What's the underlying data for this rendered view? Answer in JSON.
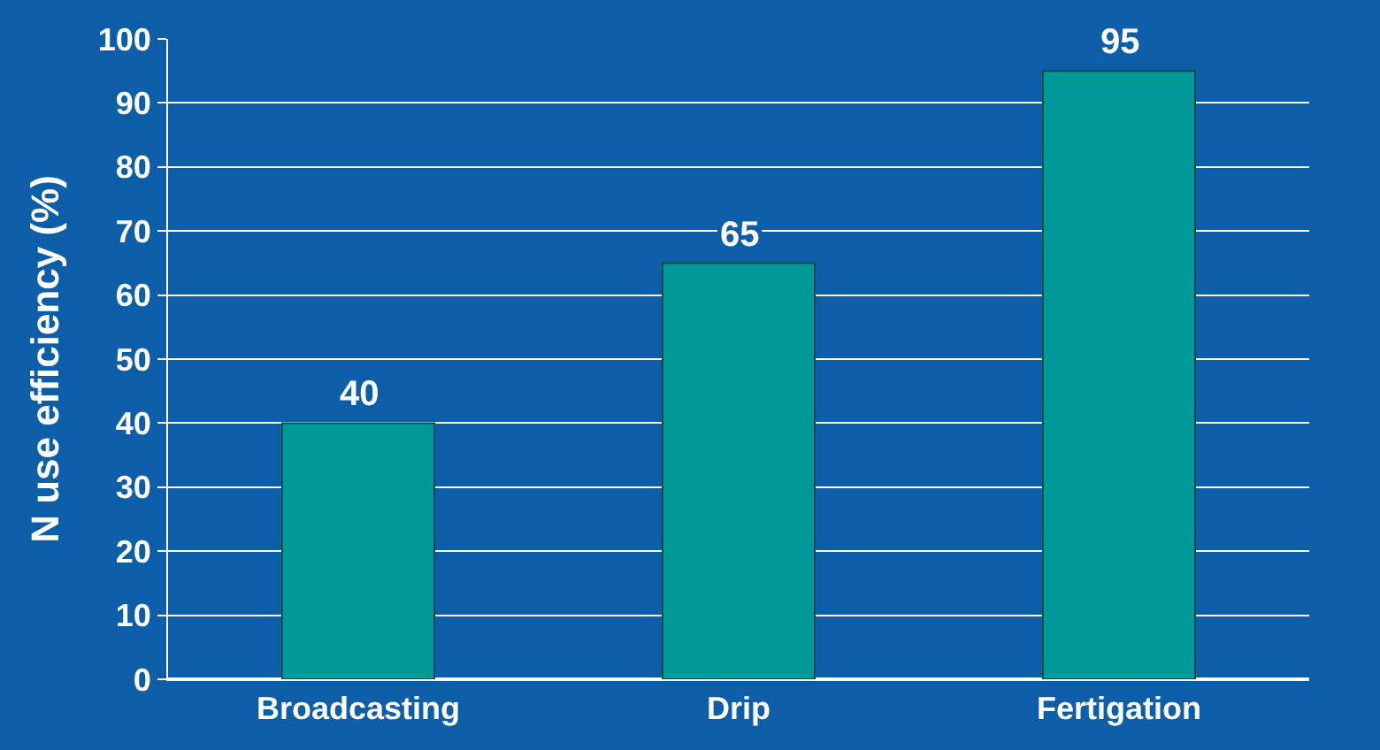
{
  "chart_data": {
    "type": "bar",
    "ylabel": "N use efficiency (%)",
    "categories": [
      "Broadcasting",
      "Drip",
      "Fertigation"
    ],
    "values": [
      40,
      65,
      95
    ],
    "color": "#009999",
    "ylim": [
      0,
      100
    ],
    "yticks": [
      0,
      10,
      20,
      30,
      40,
      50,
      60,
      70,
      80,
      90,
      100
    ],
    "grid": "y",
    "data_labels": true,
    "legend": false
  }
}
